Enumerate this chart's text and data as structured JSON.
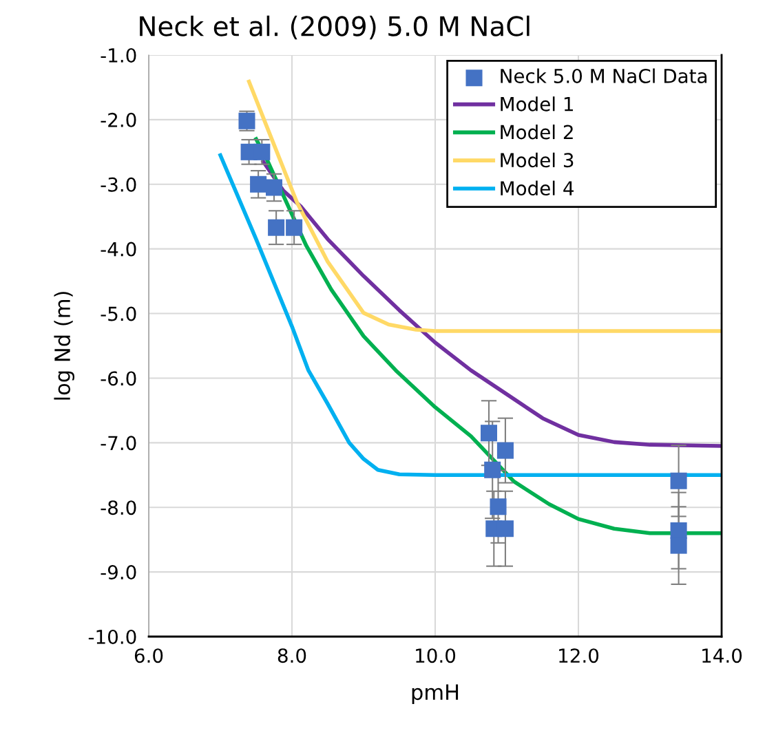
{
  "chart_data": {
    "type": "line",
    "title": "Neck et al. (2009) 5.0 M NaCl",
    "xlabel": "pmH",
    "ylabel": "log Nd (m)",
    "xlim": [
      6,
      14
    ],
    "ylim": [
      -10,
      -1
    ],
    "xticks": [
      {
        "value": 6,
        "label": "6.0"
      },
      {
        "value": 8,
        "label": "8.0"
      },
      {
        "value": 10,
        "label": "10.0"
      },
      {
        "value": 12,
        "label": "12.0"
      },
      {
        "value": 14,
        "label": "14.0"
      }
    ],
    "yticks": [
      {
        "value": -10,
        "label": "-10.0"
      },
      {
        "value": -9,
        "label": "-9.0"
      },
      {
        "value": -8,
        "label": "-8.0"
      },
      {
        "value": -7,
        "label": "-7.0"
      },
      {
        "value": -6,
        "label": "-6.0"
      },
      {
        "value": -5,
        "label": "-5.0"
      },
      {
        "value": -4,
        "label": "-4.0"
      },
      {
        "value": -3,
        "label": "-3.0"
      },
      {
        "value": -2,
        "label": "-2.0"
      },
      {
        "value": -1,
        "label": "-1.0"
      }
    ],
    "grid": true,
    "legend": "top right",
    "series": [
      {
        "name": "Neck 5.0 M NaCl Data",
        "type": "scatter",
        "marker": "square",
        "color": "#4472c4",
        "x": [
          7.37,
          7.4,
          7.58,
          7.53,
          7.75,
          7.78,
          8.03,
          10.75,
          10.98,
          10.8,
          10.88,
          10.82,
          10.98,
          13.4,
          13.4,
          13.4
        ],
        "values": [
          -2.02,
          -2.5,
          -2.5,
          -3.0,
          -3.05,
          -3.67,
          -3.67,
          -6.85,
          -7.12,
          -7.42,
          -7.99,
          -8.33,
          -8.33,
          -7.59,
          -8.36,
          -8.59
        ],
        "errors": [
          0.15,
          0.19,
          0.19,
          0.21,
          0.21,
          0.26,
          0.26,
          0.5,
          0.5,
          0.75,
          0.56,
          0.58,
          0.58,
          0.55,
          0.59,
          0.6
        ]
      },
      {
        "name": "Model 1",
        "color": "#7030a0",
        "x": [
          7.6,
          7.88,
          8.13,
          8.5,
          9.0,
          9.5,
          10.0,
          10.5,
          11.0,
          11.5,
          12.0,
          12.5,
          13.0,
          14.0
        ],
        "values": [
          -2.65,
          -3.1,
          -3.35,
          -3.85,
          -4.42,
          -4.95,
          -5.45,
          -5.88,
          -6.25,
          -6.62,
          -6.88,
          -6.99,
          -7.03,
          -7.05
        ]
      },
      {
        "name": "Model 2",
        "color": "#00b050",
        "x": [
          7.5,
          7.66,
          8.2,
          8.55,
          9.0,
          9.45,
          10.0,
          10.5,
          11.1,
          11.59,
          12.0,
          12.5,
          13.0,
          14.0
        ],
        "values": [
          -2.3,
          -2.64,
          -3.95,
          -4.63,
          -5.35,
          -5.88,
          -6.45,
          -6.9,
          -7.6,
          -7.95,
          -8.18,
          -8.33,
          -8.4,
          -8.4
        ]
      },
      {
        "name": "Model 3",
        "color": "#ffd966",
        "x": [
          7.4,
          7.7,
          8.07,
          8.5,
          9.0,
          9.35,
          9.73,
          10.0,
          14.0
        ],
        "values": [
          -1.41,
          -2.25,
          -3.28,
          -4.2,
          -4.99,
          -5.17,
          -5.25,
          -5.27,
          -5.27
        ]
      },
      {
        "name": "Model 4",
        "color": "#00b0f0",
        "x": [
          7.0,
          7.5,
          8.0,
          8.23,
          8.5,
          8.8,
          9.0,
          9.2,
          9.5,
          10.0,
          14.0
        ],
        "values": [
          -2.55,
          -3.85,
          -5.2,
          -5.88,
          -6.4,
          -7.0,
          -7.25,
          -7.42,
          -7.49,
          -7.5,
          -7.5
        ]
      }
    ]
  }
}
